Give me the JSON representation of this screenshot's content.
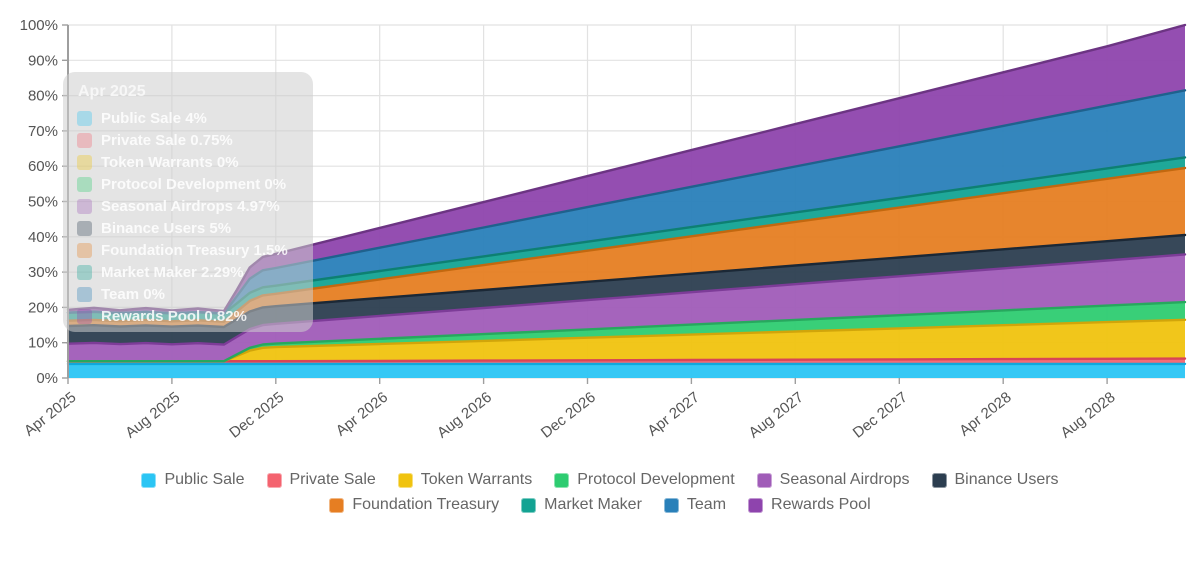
{
  "chart_data": {
    "type": "area",
    "stacked": true,
    "value_unit": "%",
    "title": "",
    "xlabel": "",
    "ylabel": "",
    "ylim": [
      0,
      100
    ],
    "y_tick_step": 10,
    "grid": true,
    "x_range_months": [
      0,
      43
    ],
    "x_ticks": [
      {
        "month": 0,
        "label": "Apr 2025"
      },
      {
        "month": 4,
        "label": "Aug 2025"
      },
      {
        "month": 8,
        "label": "Dec 2025"
      },
      {
        "month": 12,
        "label": "Apr 2026"
      },
      {
        "month": 16,
        "label": "Aug 2026"
      },
      {
        "month": 20,
        "label": "Dec 2026"
      },
      {
        "month": 24,
        "label": "Apr 2027"
      },
      {
        "month": 28,
        "label": "Aug 2027"
      },
      {
        "month": 32,
        "label": "Dec 2027"
      },
      {
        "month": 36,
        "label": "Apr 2028"
      },
      {
        "month": 40,
        "label": "Aug 2028"
      }
    ],
    "sample_months": [
      0,
      1,
      2,
      3,
      4,
      5,
      6,
      6.5,
      7,
      7.5,
      8,
      12,
      16,
      20,
      24,
      28,
      32,
      36,
      40,
      43
    ],
    "series": [
      {
        "name": "Public Sale",
        "color": "#2bc5f4",
        "stroke": "#0fa8dd",
        "values": [
          4,
          4,
          4,
          4,
          4,
          4,
          4,
          4,
          4,
          4,
          4,
          4,
          4,
          4,
          4,
          4,
          4,
          4,
          4,
          4
        ]
      },
      {
        "name": "Private Sale",
        "color": "#f4636f",
        "stroke": "#d84556",
        "values": [
          0.75,
          0.75,
          0.75,
          0.75,
          0.75,
          0.75,
          0.75,
          0.75,
          0.75,
          0.75,
          0.75,
          0.84,
          0.92,
          1.01,
          1.09,
          1.18,
          1.26,
          1.35,
          1.44,
          1.5
        ]
      },
      {
        "name": "Token Warrants",
        "color": "#f0c30f",
        "stroke": "#d1a50a",
        "values": [
          0,
          0,
          0,
          0,
          0,
          0,
          0,
          1.5,
          3,
          3.8,
          4,
          4.8,
          5.6,
          6.4,
          7.2,
          8,
          8.8,
          9.6,
          10.4,
          11
        ]
      },
      {
        "name": "Protocol Development",
        "color": "#2ecc71",
        "stroke": "#27a85e",
        "values": [
          0,
          0,
          0,
          0,
          0,
          0,
          0,
          0.4,
          0.8,
          0.95,
          1,
          1.46,
          1.91,
          2.37,
          2.83,
          3.29,
          3.74,
          4.2,
          4.66,
          5
        ]
      },
      {
        "name": "Seasonal Airdrops",
        "color": "#a05cb8",
        "stroke": "#7d3c98",
        "values": [
          4.97,
          5.2,
          4.85,
          5.15,
          4.8,
          5.1,
          4.7,
          5,
          5.3,
          5.5,
          5.6,
          6.5,
          7.4,
          8.3,
          9.2,
          10.1,
          11,
          11.9,
          12.8,
          13.5
        ]
      },
      {
        "name": "Binance Users",
        "color": "#2c3e50",
        "stroke": "#1b2836",
        "values": [
          5,
          5,
          5,
          5,
          5,
          5,
          5,
          5,
          5,
          5,
          5,
          5.06,
          5.11,
          5.17,
          5.23,
          5.29,
          5.34,
          5.4,
          5.46,
          5.5
        ]
      },
      {
        "name": "Foundation Treasury",
        "color": "#e67e22",
        "stroke": "#c2680f",
        "values": [
          1.5,
          1.5,
          1.5,
          1.5,
          1.5,
          1.5,
          1.5,
          2.2,
          3,
          3.4,
          3.5,
          5.27,
          7.04,
          8.81,
          10.59,
          12.36,
          14.13,
          15.9,
          17.67,
          19
        ]
      },
      {
        "name": "Market Maker",
        "color": "#13a393",
        "stroke": "#0d8072",
        "values": [
          2.29,
          2.29,
          2.29,
          2.29,
          2.29,
          2.29,
          2.29,
          2.29,
          2.29,
          2.3,
          2.3,
          2.38,
          2.46,
          2.54,
          2.62,
          2.7,
          2.78,
          2.86,
          2.94,
          3
        ]
      },
      {
        "name": "Team",
        "color": "#2980b9",
        "stroke": "#1f618d",
        "values": [
          0,
          0,
          0,
          0,
          0,
          0,
          0,
          2,
          4,
          4.8,
          5,
          6.6,
          8.2,
          9.8,
          11.4,
          13,
          14.6,
          16.2,
          17.8,
          19
        ]
      },
      {
        "name": "Rewards Pool",
        "color": "#8e44ad",
        "stroke": "#6c3483",
        "values": [
          0.82,
          1.15,
          0.8,
          1.1,
          0.78,
          1.05,
          0.7,
          1.8,
          3.2,
          3.8,
          4,
          5.6,
          7.2,
          8.8,
          10.4,
          12,
          13.6,
          15.2,
          16.8,
          18.5
        ]
      }
    ]
  },
  "tooltip": {
    "title": "Apr 2025",
    "rows": [
      {
        "label": "Public Sale",
        "value": "4%",
        "color": "#2bc5f4"
      },
      {
        "label": "Private Sale",
        "value": "0.75%",
        "color": "#f4636f"
      },
      {
        "label": "Token Warrants",
        "value": "0%",
        "color": "#f0c30f"
      },
      {
        "label": "Protocol Development",
        "value": "0%",
        "color": "#2ecc71"
      },
      {
        "label": "Seasonal Airdrops",
        "value": "4.97%",
        "color": "#a05cb8"
      },
      {
        "label": "Binance Users",
        "value": "5%",
        "color": "#2c3e50"
      },
      {
        "label": "Foundation Treasury",
        "value": "1.5%",
        "color": "#e67e22"
      },
      {
        "label": "Market Maker",
        "value": "2.29%",
        "color": "#13a393"
      },
      {
        "label": "Team",
        "value": "0%",
        "color": "#2980b9"
      },
      {
        "label": "Rewards Pool",
        "value": "0.82%",
        "color": "#8e44ad"
      }
    ]
  },
  "legend": {
    "rows": [
      [
        {
          "label": "Public Sale",
          "color": "#2bc5f4"
        },
        {
          "label": "Private Sale",
          "color": "#f4636f"
        },
        {
          "label": "Token Warrants",
          "color": "#f0c30f"
        },
        {
          "label": "Protocol Development",
          "color": "#2ecc71"
        },
        {
          "label": "Seasonal Airdrops",
          "color": "#a05cb8"
        },
        {
          "label": "Binance Users",
          "color": "#2c3e50"
        }
      ],
      [
        {
          "label": "Foundation Treasury",
          "color": "#e67e22"
        },
        {
          "label": "Market Maker",
          "color": "#13a393"
        },
        {
          "label": "Team",
          "color": "#2980b9"
        },
        {
          "label": "Rewards Pool",
          "color": "#8e44ad"
        }
      ]
    ]
  },
  "axis_style": {
    "label_color": "#555555",
    "grid_color": "#e2e2e2",
    "axis_color": "#9e9e9e"
  }
}
